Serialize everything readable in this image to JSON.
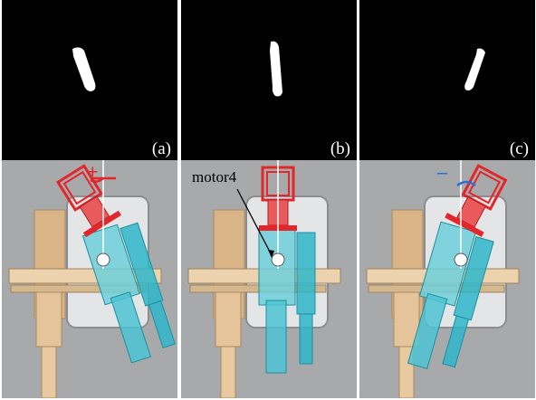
{
  "panels": [
    {
      "label": "(a)",
      "angle_sign": "+",
      "sign_color": "#e3262a"
    },
    {
      "label": "(b)",
      "annotation": "motor4"
    },
    {
      "label": "(c)",
      "angle_sign": "–",
      "sign_color": "#2a6fd6"
    }
  ],
  "colors": {
    "mask_bg": "#000000",
    "mask_fg": "#ffffff",
    "gripper": "#e3262a",
    "arm": "#2fb6c9",
    "frame": "#e6c49b",
    "plate": "#e4e5e7",
    "background": "#a7a9ab"
  }
}
